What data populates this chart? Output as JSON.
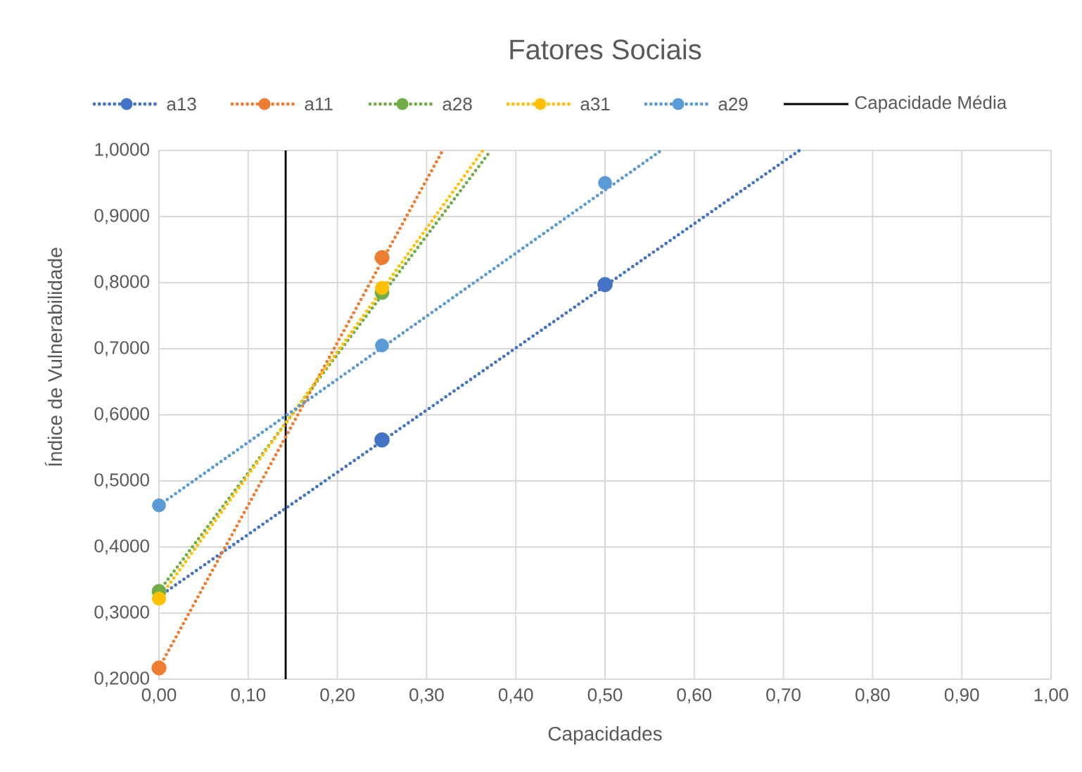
{
  "chart_data": {
    "type": "scatter",
    "title": "Fatores Sociais",
    "xlabel": "Capacidades",
    "ylabel": "Índice de Vulnerabilidade",
    "xlim": [
      0,
      1
    ],
    "ylim": [
      0.2,
      1
    ],
    "xticks": [
      {
        "value": 0,
        "label": "0,00"
      },
      {
        "value": 0.1,
        "label": "0,10"
      },
      {
        "value": 0.2,
        "label": "0,20"
      },
      {
        "value": 0.3,
        "label": "0,30"
      },
      {
        "value": 0.4,
        "label": "0,40"
      },
      {
        "value": 0.5,
        "label": "0,50"
      },
      {
        "value": 0.6,
        "label": "0,60"
      },
      {
        "value": 0.7,
        "label": "0,70"
      },
      {
        "value": 0.8,
        "label": "0,80"
      },
      {
        "value": 0.9,
        "label": "0,90"
      },
      {
        "value": 1,
        "label": "1,00"
      }
    ],
    "yticks": [
      {
        "value": 0.2,
        "label": "0,2000"
      },
      {
        "value": 0.3,
        "label": "0,3000"
      },
      {
        "value": 0.4,
        "label": "0,4000"
      },
      {
        "value": 0.5,
        "label": "0,5000"
      },
      {
        "value": 0.6,
        "label": "0,6000"
      },
      {
        "value": 0.7,
        "label": "0,7000"
      },
      {
        "value": 0.8,
        "label": "0,8000"
      },
      {
        "value": 0.9,
        "label": "0,9000"
      },
      {
        "value": 1,
        "label": "1,0000"
      }
    ],
    "grid": true,
    "legend": "top",
    "marker": "circle",
    "series": [
      {
        "name": "a13",
        "color": "#4472c4",
        "x": [
          0.25,
          0.5
        ],
        "values": [
          0.562,
          0.797
        ]
      },
      {
        "name": "a11",
        "color": "#ed7d31",
        "x": [
          0,
          0.25
        ],
        "values": [
          0.217,
          0.838
        ]
      },
      {
        "name": "a28",
        "color": "#70ad47",
        "x": [
          0,
          0.25
        ],
        "values": [
          0.333,
          0.785
        ]
      },
      {
        "name": "a31",
        "color": "#ffc000",
        "x": [
          0,
          0.25
        ],
        "values": [
          0.322,
          0.792
        ]
      },
      {
        "name": "a29",
        "color": "#5b9bd5",
        "x": [
          0,
          0.25,
          0.5
        ],
        "values": [
          0.463,
          0.705,
          0.951
        ]
      },
      {
        "type": "line",
        "line_style": "dotted",
        "marker": "none",
        "color": "#4472c4",
        "x": [
          0,
          0.718
        ],
        "values": [
          0.325,
          1
        ]
      },
      {
        "type": "line",
        "line_style": "dotted",
        "marker": "none",
        "color": "#ed7d31",
        "x": [
          0,
          0.318
        ],
        "values": [
          0.217,
          1
        ]
      },
      {
        "type": "line",
        "line_style": "dotted",
        "marker": "none",
        "color": "#70ad47",
        "x": [
          0,
          0.372
        ],
        "values": [
          0.333,
          1
        ]
      },
      {
        "type": "line",
        "line_style": "dotted",
        "marker": "none",
        "color": "#ffc000",
        "x": [
          0,
          0.363
        ],
        "values": [
          0.322,
          1
        ]
      },
      {
        "type": "line",
        "line_style": "dotted",
        "marker": "none",
        "color": "#5b9bd5",
        "x": [
          0,
          0.563
        ],
        "values": [
          0.463,
          1
        ]
      }
    ],
    "ref_lines": [
      {
        "axis": "x",
        "value": 0.142,
        "label": "Capacidade Média",
        "color": "#000000"
      }
    ]
  }
}
